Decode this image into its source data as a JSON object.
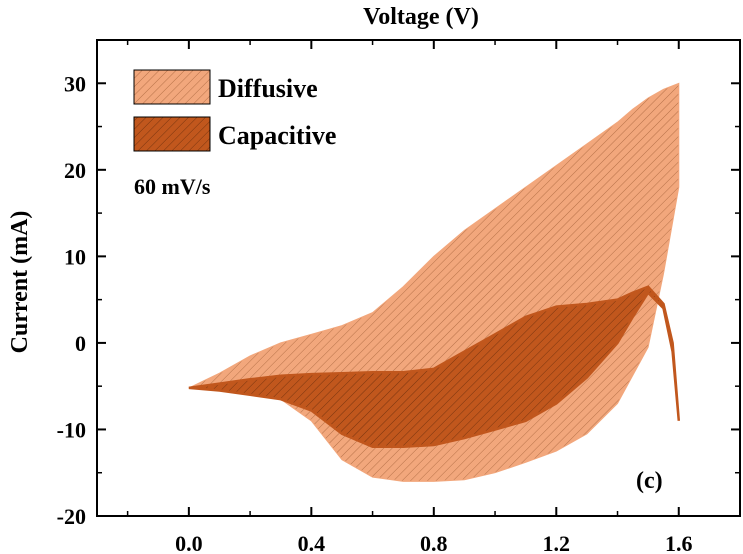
{
  "chart_data": {
    "type": "area",
    "title": "",
    "xlabel": "Voltage (V)",
    "ylabel": "Current (mA)",
    "xlim": [
      -0.3,
      1.8
    ],
    "ylim": [
      -20,
      35
    ],
    "x_ticks": [
      0.0,
      0.4,
      0.8,
      1.2,
      1.6
    ],
    "x_tick_labels": [
      "0.0",
      "0.4",
      "0.8",
      "1.2",
      "1.6"
    ],
    "y_ticks": [
      -20,
      -10,
      0,
      10,
      20,
      30
    ],
    "y_tick_labels": [
      "-20",
      "-10",
      "0",
      "10",
      "20",
      "30"
    ],
    "xlabel_position": "top",
    "grid": false,
    "legend_position": "top-left",
    "annotations": {
      "scan_rate": "60 mV/s",
      "panel_label": "(c)"
    },
    "series": [
      {
        "name": "Diffusive",
        "color": "#f2a77c",
        "hatch": true,
        "upper": {
          "x": [
            0.0,
            0.1,
            0.2,
            0.3,
            0.4,
            0.5,
            0.6,
            0.7,
            0.8,
            0.9,
            1.0,
            1.1,
            1.2,
            1.3,
            1.4,
            1.45,
            1.5,
            1.55,
            1.6
          ],
          "y": [
            -5.2,
            -3.5,
            -1.5,
            0.0,
            1.0,
            2.0,
            3.5,
            6.5,
            10.0,
            13.0,
            15.5,
            18.0,
            20.5,
            23.0,
            25.5,
            27.0,
            28.3,
            29.3,
            30.0
          ]
        },
        "lower": {
          "x": [
            0.0,
            0.2,
            0.3,
            0.4,
            0.5,
            0.6,
            0.7,
            0.8,
            0.9,
            1.0,
            1.1,
            1.2,
            1.3,
            1.4,
            1.5,
            1.55,
            1.6
          ],
          "y": [
            -5.2,
            -5.5,
            -6.5,
            -9.0,
            -13.5,
            -15.5,
            -16.0,
            -16.0,
            -15.8,
            -15.0,
            -13.8,
            -12.5,
            -10.5,
            -7.0,
            -0.5,
            8.0,
            18.0
          ]
        }
      },
      {
        "name": "Capacitive",
        "color": "#c1571d",
        "hatch": true,
        "upper": {
          "x": [
            0.0,
            0.1,
            0.2,
            0.3,
            0.4,
            0.5,
            0.6,
            0.7,
            0.8,
            0.9,
            1.0,
            1.1,
            1.2,
            1.3,
            1.4,
            1.45,
            1.5,
            1.55,
            1.58,
            1.6
          ],
          "y": [
            -5.2,
            -4.7,
            -4.2,
            -3.8,
            -3.6,
            -3.5,
            -3.4,
            -3.4,
            -3.0,
            -1.0,
            1.0,
            3.0,
            4.2,
            4.5,
            5.0,
            5.8,
            6.5,
            4.5,
            0.0,
            -9.0
          ]
        },
        "lower": {
          "x": [
            0.0,
            0.1,
            0.2,
            0.3,
            0.4,
            0.5,
            0.6,
            0.7,
            0.8,
            0.9,
            1.0,
            1.1,
            1.2,
            1.3,
            1.4,
            1.45,
            1.5,
            1.55,
            1.58,
            1.6
          ],
          "y": [
            -5.2,
            -5.5,
            -6.0,
            -6.5,
            -7.8,
            -10.5,
            -12.0,
            -12.0,
            -11.8,
            -11.0,
            -10.0,
            -9.0,
            -7.0,
            -4.0,
            0.0,
            3.0,
            5.8,
            4.0,
            -1.0,
            -9.0
          ]
        }
      }
    ]
  }
}
